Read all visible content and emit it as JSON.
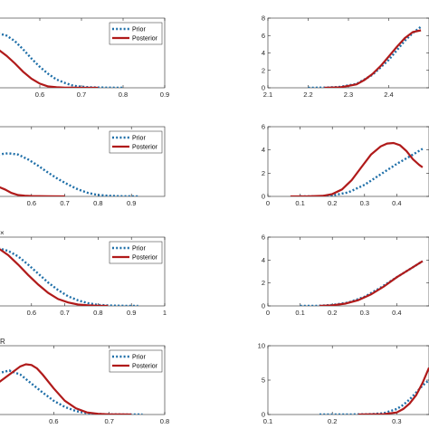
{
  "colors": {
    "prior": "#1f6fa8",
    "posterior": "#b01a1a",
    "axis": "#262626",
    "background": "#ffffff"
  },
  "chart_data": [
    {
      "type": "line",
      "panel": "row1-left",
      "corner_label": "",
      "xlim": [
        0.5,
        0.9
      ],
      "ylim": [
        0,
        1
      ],
      "xticks": [
        "0.6",
        "0.7",
        "0.8",
        "0.9"
      ],
      "yticks": [],
      "legend": {
        "placement": "top-right",
        "entries": [
          "Prior",
          "Posterior"
        ]
      },
      "series": [
        {
          "name": "Prior",
          "style": "dotted",
          "x": [
            0.5,
            0.52,
            0.54,
            0.56,
            0.58,
            0.6,
            0.62,
            0.64,
            0.66,
            0.68,
            0.7,
            0.72,
            0.74,
            0.76,
            0.78,
            0.8
          ],
          "y": [
            0.78,
            0.75,
            0.67,
            0.55,
            0.42,
            0.3,
            0.2,
            0.12,
            0.07,
            0.03,
            0.015,
            0.008,
            0.004,
            0.002,
            0.001,
            0.0
          ]
        },
        {
          "name": "Posterior",
          "style": "solid",
          "x": [
            0.5,
            0.52,
            0.54,
            0.56,
            0.58,
            0.6,
            0.62,
            0.64,
            0.66,
            0.68,
            0.7,
            0.72,
            0.74
          ],
          "y": [
            0.55,
            0.46,
            0.35,
            0.23,
            0.13,
            0.06,
            0.02,
            0.008,
            0.003,
            0.001,
            0.0,
            0.0,
            0.0
          ]
        }
      ]
    },
    {
      "type": "line",
      "panel": "row1-right",
      "corner_label": "",
      "xlim": [
        2.1,
        2.5
      ],
      "ylim": [
        0,
        8
      ],
      "xticks": [
        "2.1",
        "2.2",
        "2.3",
        "2.4"
      ],
      "yticks": [
        "0",
        "2",
        "4",
        "6",
        "8"
      ],
      "legend": null,
      "series": [
        {
          "name": "Prior",
          "style": "dotted",
          "x": [
            2.2,
            2.24,
            2.28,
            2.32,
            2.36,
            2.4,
            2.42,
            2.44,
            2.46,
            2.48
          ],
          "y": [
            0.0,
            0.02,
            0.1,
            0.45,
            1.5,
            3.2,
            4.3,
            5.4,
            6.3,
            7.0
          ]
        },
        {
          "name": "Posterior",
          "style": "solid",
          "x": [
            2.24,
            2.28,
            2.32,
            2.34,
            2.36,
            2.38,
            2.4,
            2.42,
            2.44,
            2.46,
            2.48
          ],
          "y": [
            0.0,
            0.05,
            0.4,
            0.9,
            1.6,
            2.5,
            3.6,
            4.7,
            5.7,
            6.4,
            6.6
          ]
        }
      ]
    },
    {
      "type": "line",
      "panel": "row2-left",
      "corner_label": "",
      "xlim": [
        0.5,
        1.0
      ],
      "ylim": [
        0,
        1
      ],
      "xticks": [
        "0.6",
        "0.7",
        "0.8",
        "0.9"
      ],
      "yticks": [],
      "legend": {
        "placement": "top-right",
        "entries": [
          "Prior",
          "Posterior"
        ]
      },
      "series": [
        {
          "name": "Prior",
          "style": "dotted",
          "x": [
            0.5,
            0.53,
            0.56,
            0.59,
            0.62,
            0.65,
            0.68,
            0.71,
            0.74,
            0.77,
            0.8,
            0.83,
            0.86,
            0.9,
            0.92
          ],
          "y": [
            0.6,
            0.62,
            0.6,
            0.53,
            0.44,
            0.34,
            0.25,
            0.17,
            0.1,
            0.05,
            0.02,
            0.01,
            0.004,
            0.001,
            0.0
          ]
        },
        {
          "name": "Posterior",
          "style": "solid",
          "x": [
            0.5,
            0.52,
            0.54,
            0.56,
            0.58,
            0.6,
            0.65,
            0.7
          ],
          "y": [
            0.14,
            0.1,
            0.05,
            0.02,
            0.01,
            0.005,
            0.001,
            0.0
          ]
        }
      ]
    },
    {
      "type": "line",
      "panel": "row2-right",
      "corner_label": "",
      "xlim": [
        0.0,
        0.5
      ],
      "ylim": [
        0,
        6
      ],
      "xticks": [
        "0",
        "0.1",
        "0.2",
        "0.3",
        "0.4"
      ],
      "yticks": [
        "0",
        "2",
        "4",
        "6"
      ],
      "legend": null,
      "series": [
        {
          "name": "Prior",
          "style": "dotted",
          "x": [
            0.1,
            0.15,
            0.2,
            0.25,
            0.3,
            0.35,
            0.4,
            0.45,
            0.48
          ],
          "y": [
            0.0,
            0.01,
            0.08,
            0.35,
            1.0,
            1.9,
            2.8,
            3.6,
            4.1
          ]
        },
        {
          "name": "Posterior",
          "style": "solid",
          "x": [
            0.07,
            0.12,
            0.17,
            0.2,
            0.23,
            0.26,
            0.29,
            0.32,
            0.35,
            0.37,
            0.39,
            0.41,
            0.43,
            0.45,
            0.47,
            0.48
          ],
          "y": [
            0.0,
            0.0,
            0.05,
            0.2,
            0.6,
            1.4,
            2.5,
            3.6,
            4.3,
            4.55,
            4.6,
            4.4,
            3.9,
            3.2,
            2.7,
            2.5
          ]
        }
      ]
    },
    {
      "type": "line",
      "panel": "row3-left",
      "corner_label": "×",
      "xlim": [
        0.5,
        1.0
      ],
      "ylim": [
        0,
        1
      ],
      "xticks": [
        "0.6",
        "0.7",
        "0.8",
        "0.9",
        "1"
      ],
      "yticks": [],
      "legend": {
        "placement": "top-right",
        "entries": [
          "Prior",
          "Posterior"
        ]
      },
      "series": [
        {
          "name": "Prior",
          "style": "dotted",
          "x": [
            0.5,
            0.53,
            0.56,
            0.59,
            0.62,
            0.65,
            0.68,
            0.71,
            0.74,
            0.77,
            0.8,
            0.84,
            0.88,
            0.92
          ],
          "y": [
            0.84,
            0.8,
            0.72,
            0.6,
            0.47,
            0.34,
            0.23,
            0.14,
            0.08,
            0.04,
            0.015,
            0.005,
            0.001,
            0.0
          ]
        },
        {
          "name": "Posterior",
          "style": "solid",
          "x": [
            0.5,
            0.53,
            0.56,
            0.59,
            0.62,
            0.65,
            0.68,
            0.71,
            0.74,
            0.77,
            0.8,
            0.83
          ],
          "y": [
            0.84,
            0.74,
            0.6,
            0.45,
            0.31,
            0.19,
            0.1,
            0.05,
            0.02,
            0.008,
            0.002,
            0.0
          ]
        }
      ]
    },
    {
      "type": "line",
      "panel": "row3-right",
      "corner_label": "",
      "xlim": [
        0.0,
        0.5
      ],
      "ylim": [
        0,
        6
      ],
      "xticks": [
        "0",
        "0.1",
        "0.2",
        "0.3",
        "0.4"
      ],
      "yticks": [
        "0",
        "2",
        "4",
        "6"
      ],
      "legend": null,
      "series": [
        {
          "name": "Prior",
          "style": "dotted",
          "x": [
            0.1,
            0.15,
            0.2,
            0.25,
            0.3,
            0.35,
            0.4,
            0.44,
            0.48
          ],
          "y": [
            0.0,
            0.01,
            0.08,
            0.3,
            0.8,
            1.6,
            2.5,
            3.2,
            3.9
          ]
        },
        {
          "name": "Posterior",
          "style": "solid",
          "x": [
            0.16,
            0.2,
            0.24,
            0.28,
            0.32,
            0.36,
            0.4,
            0.44,
            0.48
          ],
          "y": [
            0.0,
            0.05,
            0.2,
            0.5,
            1.0,
            1.7,
            2.5,
            3.2,
            3.9
          ]
        }
      ]
    },
    {
      "type": "line",
      "panel": "row4-left",
      "corner_label": "R",
      "xlim": [
        0.5,
        0.8
      ],
      "ylim": [
        0,
        1
      ],
      "xticks": [
        "0.6",
        "0.7",
        "0.8"
      ],
      "yticks": [],
      "legend": {
        "placement": "top-right",
        "entries": [
          "Prior",
          "Posterior"
        ]
      },
      "series": [
        {
          "name": "Prior",
          "style": "dotted",
          "x": [
            0.5,
            0.52,
            0.54,
            0.56,
            0.58,
            0.6,
            0.62,
            0.64,
            0.66,
            0.68,
            0.7,
            0.72,
            0.74,
            0.76
          ],
          "y": [
            0.6,
            0.64,
            0.58,
            0.45,
            0.32,
            0.2,
            0.11,
            0.05,
            0.02,
            0.008,
            0.003,
            0.001,
            0.0,
            0.0
          ]
        },
        {
          "name": "Posterior",
          "style": "solid",
          "x": [
            0.5,
            0.52,
            0.54,
            0.55,
            0.56,
            0.57,
            0.58,
            0.6,
            0.62,
            0.64,
            0.66,
            0.68,
            0.7,
            0.72,
            0.74
          ],
          "y": [
            0.46,
            0.58,
            0.7,
            0.73,
            0.72,
            0.67,
            0.58,
            0.38,
            0.2,
            0.09,
            0.03,
            0.01,
            0.003,
            0.001,
            0.0
          ]
        }
      ]
    },
    {
      "type": "line",
      "panel": "row4-right",
      "corner_label": "",
      "xlim": [
        0.1,
        0.35
      ],
      "ylim": [
        0,
        10
      ],
      "xticks": [
        "0.1",
        "0.2",
        "0.3"
      ],
      "yticks": [
        "0",
        "5",
        "10"
      ],
      "legend": null,
      "series": [
        {
          "name": "Prior",
          "style": "dotted",
          "x": [
            0.18,
            0.22,
            0.26,
            0.28,
            0.3,
            0.31,
            0.32,
            0.33,
            0.34,
            0.35
          ],
          "y": [
            0.0,
            0.0,
            0.05,
            0.2,
            0.8,
            1.4,
            2.2,
            3.2,
            4.2,
            5.0
          ]
        },
        {
          "name": "Posterior",
          "style": "solid",
          "x": [
            0.24,
            0.28,
            0.3,
            0.31,
            0.32,
            0.33,
            0.34,
            0.35
          ],
          "y": [
            0.0,
            0.05,
            0.3,
            0.8,
            1.6,
            2.8,
            4.6,
            6.8
          ]
        }
      ]
    }
  ]
}
